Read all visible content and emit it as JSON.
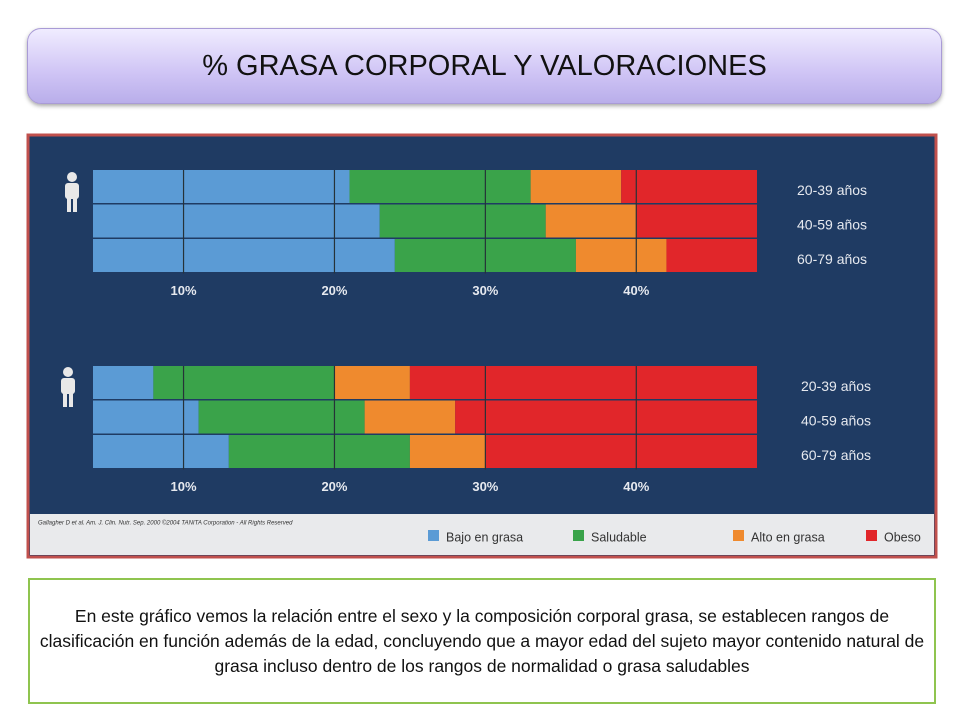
{
  "title": "% GRASA CORPORAL Y VALORACIONES",
  "legend": [
    {
      "name": "Bajo en grasa",
      "color": "#5b9bd5"
    },
    {
      "name": "Saludable",
      "color": "#3aa34a"
    },
    {
      "name": "Alto en grasa",
      "color": "#ef8a2e"
    },
    {
      "name": "Obeso",
      "color": "#e1262a"
    }
  ],
  "chart_data": [
    {
      "type": "bar",
      "categories": [
        "20-39 años",
        "40-59 años",
        "60-79 años"
      ],
      "thresholds": [
        [
          21,
          33,
          39
        ],
        [
          23,
          34,
          40
        ],
        [
          24,
          36,
          42
        ]
      ],
      "xlim": [
        4,
        48
      ],
      "xticks": [
        {
          "value": 10,
          "label": "10%"
        },
        {
          "value": 20,
          "label": "20%"
        },
        {
          "value": 30,
          "label": "30%"
        },
        {
          "value": 40,
          "label": "40%"
        }
      ]
    },
    {
      "type": "bar",
      "categories": [
        "20-39 años",
        "40-59 años",
        "60-79 años"
      ],
      "thresholds": [
        [
          8,
          20,
          25
        ],
        [
          11,
          22,
          28
        ],
        [
          13,
          25,
          30
        ]
      ],
      "xlim": [
        4,
        48
      ],
      "xticks": [
        {
          "value": 10,
          "label": "10%"
        },
        {
          "value": 20,
          "label": "20%"
        },
        {
          "value": 30,
          "label": "30%"
        },
        {
          "value": 40,
          "label": "40%"
        }
      ]
    }
  ],
  "source": "Gallagher D et al. Am. J. Clin. Nutr. Sep. 2000   ©2004 TANITA Corporation - All Rights Reserved",
  "description": "En este gráfico vemos la relación entre el sexo y la composición corporal grasa, se establecen rangos de clasificación en función además de la edad, concluyendo que a mayor edad del sujeto mayor contenido natural de grasa incluso dentro de los rangos de normalidad o grasa saludables"
}
